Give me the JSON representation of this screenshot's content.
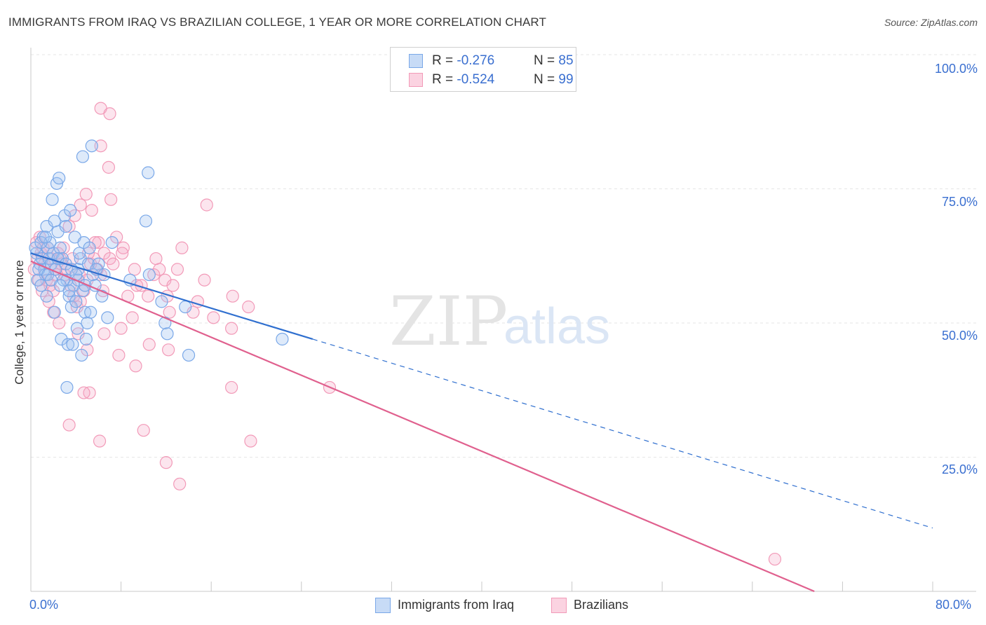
{
  "title": "IMMIGRANTS FROM IRAQ VS BRAZILIAN COLLEGE, 1 YEAR OR MORE CORRELATION CHART",
  "source": "Source: ZipAtlas.com",
  "watermark": {
    "zip": "ZIP",
    "atlas": "atlas"
  },
  "legend_top": {
    "rows": [
      {
        "r_label": "R = ",
        "r_value": "-0.276",
        "n_label": "N = ",
        "n_value": "85",
        "color": "#7aa8e8"
      },
      {
        "r_label": "R = ",
        "r_value": "-0.524",
        "n_label": "N = ",
        "n_value": "99",
        "color": "#f29ab8"
      }
    ]
  },
  "chart_data": {
    "type": "scatter",
    "title": "IMMIGRANTS FROM IRAQ VS BRAZILIAN COLLEGE, 1 YEAR OR MORE CORRELATION CHART",
    "xlabel": "",
    "ylabel": "College, 1 year or more",
    "xlim": [
      0,
      80
    ],
    "ylim": [
      0,
      100
    ],
    "x_tick_labels": [
      "0.0%",
      "80.0%"
    ],
    "y_tick_labels": [
      "100.0%",
      "75.0%",
      "50.0%",
      "25.0%"
    ],
    "y_tick_values": [
      100,
      75,
      50,
      25
    ],
    "series": [
      {
        "name": "Immigrants from Iraq",
        "color": "#7aa8e8",
        "line_color": "#2f6fcf",
        "r": -0.276,
        "n": 85,
        "trend": {
          "x0": 0,
          "y0": 63.0,
          "x1": 25,
          "y1": 47.0,
          "x_dash_end": 80
        },
        "points": [
          [
            0.5,
            63
          ],
          [
            0.8,
            61
          ],
          [
            1.0,
            62
          ],
          [
            1.2,
            60
          ],
          [
            1.3,
            59
          ],
          [
            1.5,
            64
          ],
          [
            1.6,
            62
          ],
          [
            1.8,
            61
          ],
          [
            2.0,
            63
          ],
          [
            2.2,
            60
          ],
          [
            0.6,
            58
          ],
          [
            0.9,
            57
          ],
          [
            1.1,
            66
          ],
          [
            1.4,
            68
          ],
          [
            1.7,
            65
          ],
          [
            2.1,
            69
          ],
          [
            2.4,
            67
          ],
          [
            2.6,
            64
          ],
          [
            2.8,
            62
          ],
          [
            3.0,
            70
          ],
          [
            3.2,
            58
          ],
          [
            3.4,
            55
          ],
          [
            3.6,
            53
          ],
          [
            3.8,
            57
          ],
          [
            4.0,
            54
          ],
          [
            4.2,
            60
          ],
          [
            4.4,
            62
          ],
          [
            4.6,
            56
          ],
          [
            4.8,
            52
          ],
          [
            5.0,
            50
          ],
          [
            1.9,
            73
          ],
          [
            2.3,
            76
          ],
          [
            2.5,
            77
          ],
          [
            3.1,
            68
          ],
          [
            3.5,
            71
          ],
          [
            3.9,
            66
          ],
          [
            4.3,
            63
          ],
          [
            4.7,
            65
          ],
          [
            5.1,
            61
          ],
          [
            5.5,
            59
          ],
          [
            2.7,
            47
          ],
          [
            3.3,
            46
          ],
          [
            3.7,
            46
          ],
          [
            4.1,
            49
          ],
          [
            4.5,
            44
          ],
          [
            4.9,
            47
          ],
          [
            5.3,
            52
          ],
          [
            5.7,
            57
          ],
          [
            6.0,
            61
          ],
          [
            6.5,
            59
          ],
          [
            4.6,
            81
          ],
          [
            5.4,
            83
          ],
          [
            10.4,
            78
          ],
          [
            10.2,
            69
          ],
          [
            7.2,
            65
          ],
          [
            6.8,
            51
          ],
          [
            8.8,
            58
          ],
          [
            10.5,
            59
          ],
          [
            11.6,
            54
          ],
          [
            11.9,
            50
          ],
          [
            12.1,
            48
          ],
          [
            13.7,
            53
          ],
          [
            14.0,
            44
          ],
          [
            22.3,
            47
          ],
          [
            3.2,
            38
          ],
          [
            1.4,
            55
          ],
          [
            2.1,
            52
          ],
          [
            2.9,
            58
          ],
          [
            0.7,
            60
          ],
          [
            1.5,
            59
          ],
          [
            2.4,
            62
          ],
          [
            3.1,
            61
          ],
          [
            3.6,
            60
          ],
          [
            4.2,
            58
          ],
          [
            4.8,
            57
          ],
          [
            0.4,
            64
          ],
          [
            0.9,
            65
          ],
          [
            1.3,
            66
          ],
          [
            1.8,
            58
          ],
          [
            2.6,
            57
          ],
          [
            3.4,
            56
          ],
          [
            4.0,
            59
          ],
          [
            5.2,
            64
          ],
          [
            5.8,
            60
          ],
          [
            6.3,
            55
          ]
        ]
      },
      {
        "name": "Brazilians",
        "color": "#f29ab8",
        "line_color": "#e0608e",
        "r": -0.524,
        "n": 99,
        "trend": {
          "x0": 0,
          "y0": 61.5,
          "x1": 69.5,
          "y1": 0
        },
        "points": [
          [
            0.3,
            60
          ],
          [
            0.6,
            62
          ],
          [
            0.9,
            63
          ],
          [
            1.2,
            61
          ],
          [
            1.5,
            64
          ],
          [
            1.8,
            62
          ],
          [
            2.1,
            60
          ],
          [
            2.4,
            63
          ],
          [
            2.7,
            61
          ],
          [
            3.0,
            59
          ],
          [
            0.5,
            65
          ],
          [
            0.8,
            66
          ],
          [
            1.1,
            64
          ],
          [
            1.4,
            58
          ],
          [
            1.7,
            57
          ],
          [
            2.0,
            56
          ],
          [
            2.3,
            59
          ],
          [
            2.6,
            62
          ],
          [
            2.9,
            64
          ],
          [
            3.2,
            60
          ],
          [
            3.5,
            57
          ],
          [
            3.8,
            55
          ],
          [
            4.1,
            53
          ],
          [
            4.4,
            54
          ],
          [
            4.7,
            56
          ],
          [
            5.0,
            58
          ],
          [
            5.3,
            61
          ],
          [
            5.6,
            62
          ],
          [
            5.9,
            60
          ],
          [
            6.2,
            59
          ],
          [
            3.4,
            68
          ],
          [
            3.9,
            70
          ],
          [
            4.4,
            72
          ],
          [
            4.9,
            74
          ],
          [
            5.4,
            71
          ],
          [
            6.0,
            65
          ],
          [
            6.5,
            63
          ],
          [
            7.0,
            62
          ],
          [
            7.6,
            66
          ],
          [
            8.2,
            64
          ],
          [
            6.2,
            90
          ],
          [
            7.0,
            89
          ],
          [
            6.2,
            83
          ],
          [
            6.9,
            79
          ],
          [
            7.1,
            73
          ],
          [
            8.1,
            63
          ],
          [
            9.2,
            60
          ],
          [
            9.8,
            57
          ],
          [
            10.4,
            55
          ],
          [
            10.9,
            59
          ],
          [
            11.4,
            60
          ],
          [
            11.9,
            58
          ],
          [
            12.1,
            55
          ],
          [
            12.3,
            52
          ],
          [
            13.4,
            64
          ],
          [
            14.4,
            52
          ],
          [
            15.6,
            72
          ],
          [
            15.4,
            58
          ],
          [
            17.9,
            55
          ],
          [
            19.3,
            53
          ],
          [
            17.8,
            49
          ],
          [
            17.8,
            38
          ],
          [
            19.5,
            28
          ],
          [
            26.5,
            38
          ],
          [
            66.0,
            6
          ],
          [
            6.1,
            28
          ],
          [
            5.2,
            37
          ],
          [
            4.7,
            37
          ],
          [
            3.4,
            31
          ],
          [
            10.0,
            30
          ],
          [
            12.0,
            24
          ],
          [
            13.2,
            20
          ],
          [
            9.3,
            42
          ],
          [
            10.5,
            46
          ],
          [
            12.2,
            45
          ],
          [
            8.0,
            49
          ],
          [
            9.0,
            51
          ],
          [
            6.5,
            48
          ],
          [
            5.0,
            45
          ],
          [
            4.2,
            48
          ],
          [
            2.5,
            50
          ],
          [
            2.0,
            52
          ],
          [
            1.6,
            54
          ],
          [
            1.0,
            56
          ],
          [
            0.7,
            58
          ],
          [
            3.7,
            62
          ],
          [
            4.3,
            59
          ],
          [
            5.1,
            63
          ],
          [
            5.7,
            65
          ],
          [
            6.4,
            56
          ],
          [
            7.3,
            61
          ],
          [
            8.6,
            55
          ],
          [
            9.4,
            57
          ],
          [
            11.1,
            62
          ],
          [
            12.6,
            57
          ],
          [
            14.8,
            54
          ],
          [
            16.2,
            51
          ],
          [
            13.0,
            60
          ],
          [
            7.8,
            44
          ]
        ]
      }
    ]
  },
  "bottom_legend": [
    {
      "label": "Immigrants from Iraq",
      "color": "#7aa8e8"
    },
    {
      "label": "Brazilians",
      "color": "#f29ab8"
    }
  ]
}
